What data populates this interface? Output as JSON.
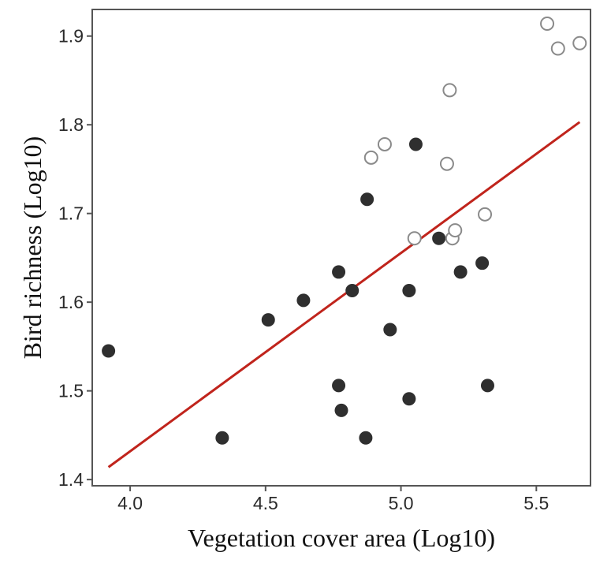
{
  "chart_data": {
    "type": "scatter",
    "title": "",
    "xlabel": "Vegetation cover area (Log10)",
    "ylabel": "Bird richness (Log10)",
    "xlim": [
      3.86,
      5.7
    ],
    "ylim": [
      1.393,
      1.93
    ],
    "xticks": [
      "4.0",
      "4.5",
      "5.0",
      "5.5"
    ],
    "yticks": [
      "1.4",
      "1.5",
      "1.6",
      "1.7",
      "1.8",
      "1.9"
    ],
    "grid": false,
    "legend": "none",
    "series": [
      {
        "marker": "filled",
        "color": "#2f2f2f",
        "points": [
          [
            3.92,
            1.545
          ],
          [
            4.34,
            1.447
          ],
          [
            4.51,
            1.58
          ],
          [
            4.64,
            1.602
          ],
          [
            4.77,
            1.634
          ],
          [
            4.77,
            1.506
          ],
          [
            4.78,
            1.478
          ],
          [
            4.82,
            1.613
          ],
          [
            4.87,
            1.447
          ],
          [
            4.875,
            1.716
          ],
          [
            4.96,
            1.569
          ],
          [
            5.03,
            1.613
          ],
          [
            5.03,
            1.491
          ],
          [
            5.055,
            1.778
          ],
          [
            5.14,
            1.672
          ],
          [
            5.22,
            1.634
          ],
          [
            5.3,
            1.644
          ],
          [
            5.32,
            1.506
          ]
        ]
      },
      {
        "marker": "open",
        "color": "#8a8a8a",
        "points": [
          [
            4.89,
            1.763
          ],
          [
            4.94,
            1.778
          ],
          [
            5.05,
            1.672
          ],
          [
            5.17,
            1.756
          ],
          [
            5.18,
            1.839
          ],
          [
            5.19,
            1.672
          ],
          [
            5.2,
            1.681
          ],
          [
            5.31,
            1.699
          ],
          [
            5.54,
            1.914
          ],
          [
            5.58,
            1.886
          ],
          [
            5.66,
            1.892
          ]
        ]
      }
    ],
    "trendline": {
      "color": "#c0241c",
      "x": [
        3.92,
        5.66
      ],
      "y": [
        1.414,
        1.803
      ]
    }
  }
}
